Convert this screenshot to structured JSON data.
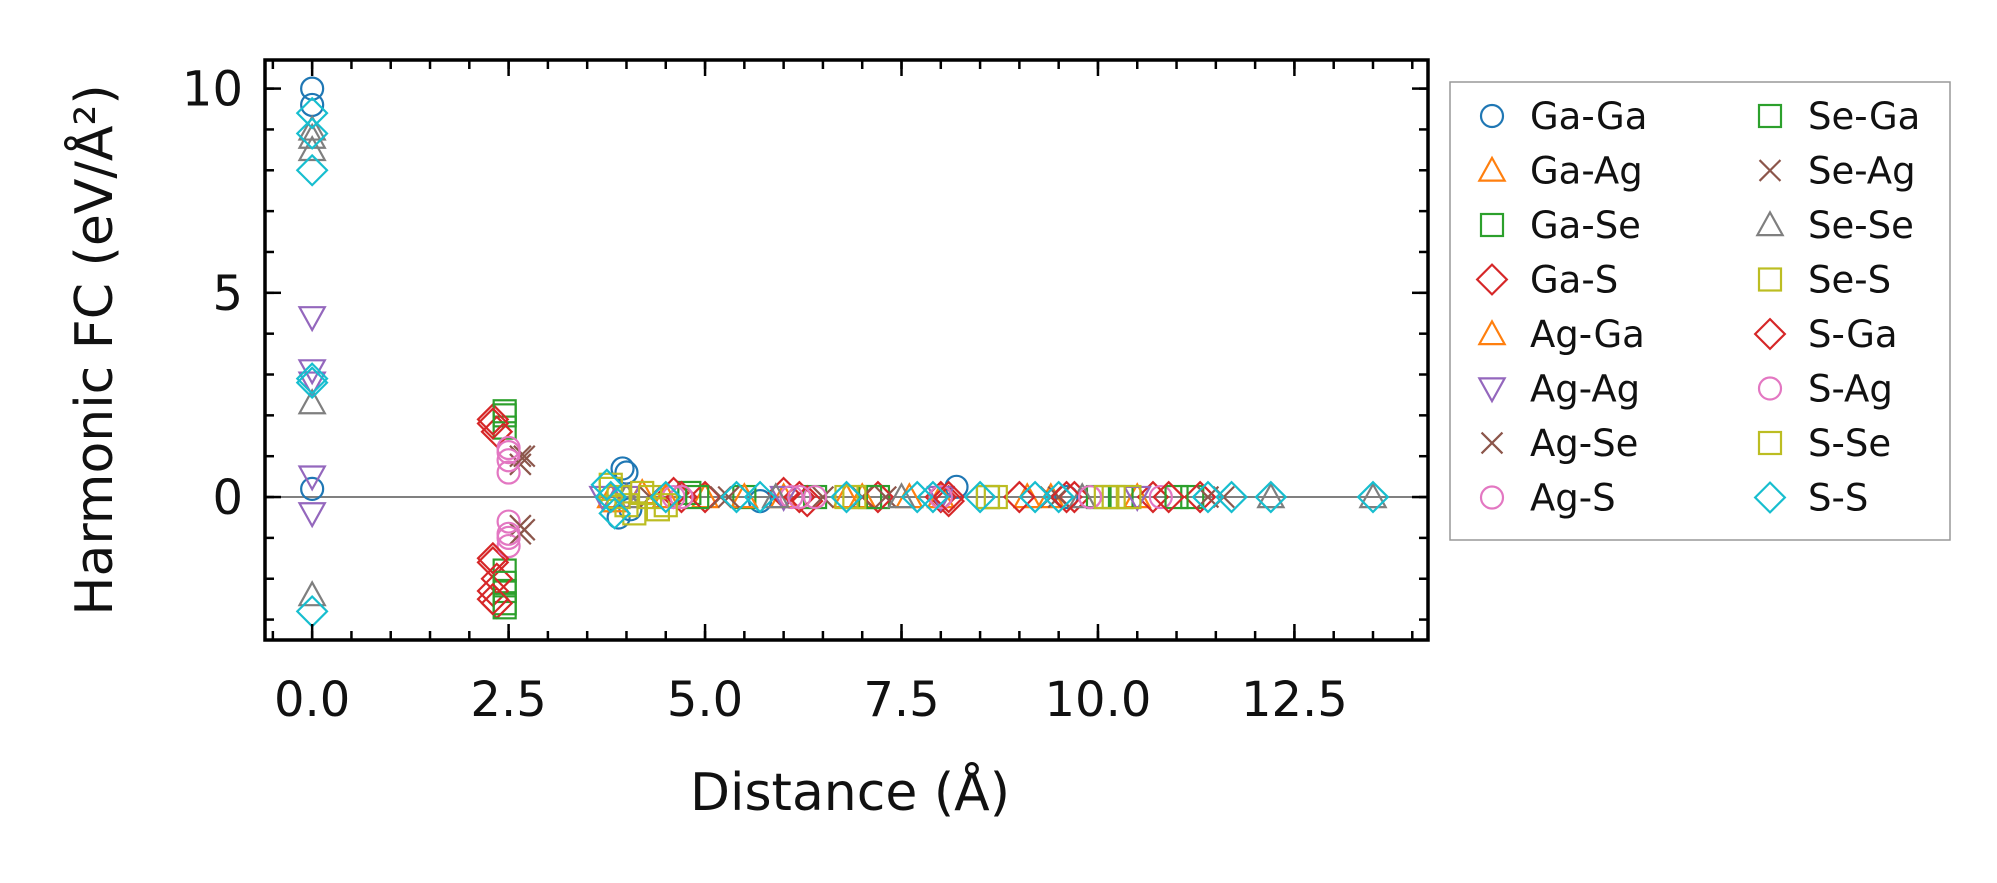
{
  "chart_data": {
    "type": "scatter",
    "xlabel": "Distance (Å)",
    "ylabel": "Harmonic FC (eV/Å²)",
    "xlim": [
      -0.6,
      14.2
    ],
    "ylim": [
      -3.5,
      10.7
    ],
    "x_ticks": [
      {
        "value": 0,
        "label": "0.0"
      },
      {
        "value": 2.5,
        "label": "2.5"
      },
      {
        "value": 5,
        "label": "5.0"
      },
      {
        "value": 7.5,
        "label": "7.5"
      },
      {
        "value": 10,
        "label": "10.0"
      },
      {
        "value": 12.5,
        "label": "12.5"
      }
    ],
    "y_ticks": [
      {
        "value": 0,
        "label": "0"
      },
      {
        "value": 5,
        "label": "5"
      },
      {
        "value": 10,
        "label": "10"
      }
    ],
    "x_minor_step": 0.5,
    "y_minor_step": 1,
    "zero_line": true,
    "legend_position": "outside-right",
    "series": [
      {
        "name": "Ga-Ga",
        "marker": "circle",
        "color": "#1f77b4",
        "points": [
          [
            0,
            10.0
          ],
          [
            0,
            9.6
          ],
          [
            0,
            0.2
          ],
          [
            3.95,
            0.7
          ],
          [
            4.0,
            0.6
          ],
          [
            3.9,
            -0.5
          ],
          [
            4.05,
            -0.3
          ],
          [
            5.7,
            -0.1
          ],
          [
            8.2,
            0.25
          ],
          [
            9.6,
            0.0
          ]
        ]
      },
      {
        "name": "Ga-Ag",
        "marker": "triangle-up",
        "color": "#ff7f0e",
        "points": [
          [
            3.8,
            0.0
          ],
          [
            4.2,
            0.1
          ],
          [
            5.0,
            0.0
          ],
          [
            6.0,
            0.0
          ],
          [
            7.0,
            0.0
          ],
          [
            8.0,
            0.0
          ],
          [
            9.1,
            0.0
          ],
          [
            10.5,
            0.0
          ]
        ]
      },
      {
        "name": "Ga-Se",
        "marker": "square",
        "color": "#2ca02c",
        "points": [
          [
            2.45,
            2.0
          ],
          [
            2.45,
            1.7
          ],
          [
            2.45,
            -1.8
          ],
          [
            2.45,
            -2.3
          ],
          [
            2.45,
            -2.6
          ],
          [
            4.8,
            0.1
          ],
          [
            5.5,
            0.0
          ],
          [
            6.4,
            0.0
          ],
          [
            7.2,
            0.0
          ],
          [
            8.6,
            0.0
          ],
          [
            10.3,
            0.0
          ],
          [
            11.2,
            0.0
          ]
        ]
      },
      {
        "name": "Ga-S",
        "marker": "diamond",
        "color": "#d62728",
        "points": [
          [
            2.3,
            1.9
          ],
          [
            2.35,
            1.6
          ],
          [
            2.3,
            -1.6
          ],
          [
            2.35,
            -2.0
          ],
          [
            2.3,
            -2.3
          ],
          [
            2.35,
            -2.6
          ],
          [
            4.6,
            0.1
          ],
          [
            5.0,
            0.0
          ],
          [
            6.0,
            0.1
          ],
          [
            6.3,
            -0.1
          ],
          [
            7.2,
            0.0
          ],
          [
            8.0,
            0.0
          ],
          [
            8.1,
            -0.1
          ],
          [
            9.0,
            0.0
          ],
          [
            9.7,
            0.0
          ],
          [
            10.7,
            0.0
          ],
          [
            11.3,
            0.0
          ]
        ]
      },
      {
        "name": "Ag-Ga",
        "marker": "triangle-up",
        "color": "#ff7f0e",
        "points": [
          [
            3.85,
            -0.1
          ],
          [
            4.5,
            0.0
          ],
          [
            5.5,
            0.0
          ],
          [
            6.8,
            0.0
          ],
          [
            7.6,
            0.0
          ],
          [
            9.4,
            0.0
          ]
        ]
      },
      {
        "name": "Ag-Ag",
        "marker": "triangle-down",
        "color": "#9467bd",
        "points": [
          [
            0,
            4.4
          ],
          [
            0,
            3.1
          ],
          [
            0,
            2.8
          ],
          [
            0,
            0.5
          ],
          [
            0,
            -0.4
          ],
          [
            3.7,
            0.0
          ],
          [
            4.0,
            0.0
          ],
          [
            6.0,
            0.0
          ],
          [
            8.0,
            0.0
          ],
          [
            10.5,
            0.0
          ]
        ]
      },
      {
        "name": "Ag-Se",
        "marker": "x",
        "color": "#8c564b",
        "points": [
          [
            2.65,
            1.0
          ],
          [
            2.65,
            0.8
          ],
          [
            2.65,
            -0.7
          ],
          [
            2.65,
            -0.9
          ],
          [
            4.3,
            0.0
          ],
          [
            5.2,
            0.0
          ],
          [
            6.5,
            0.0
          ],
          [
            7.0,
            0.0
          ],
          [
            9.5,
            0.0
          ],
          [
            11.4,
            0.0
          ]
        ]
      },
      {
        "name": "Ag-S",
        "marker": "circle",
        "color": "#e377c2",
        "points": [
          [
            2.5,
            1.2
          ],
          [
            2.5,
            0.9
          ],
          [
            2.5,
            0.6
          ],
          [
            2.5,
            -0.6
          ],
          [
            2.5,
            -0.9
          ],
          [
            2.5,
            -1.2
          ],
          [
            4.6,
            0.0
          ],
          [
            6.1,
            0.0
          ],
          [
            6.4,
            0.0
          ],
          [
            8.0,
            0.0
          ],
          [
            9.9,
            0.0
          ],
          [
            10.8,
            0.0
          ]
        ]
      },
      {
        "name": "Se-Ga",
        "marker": "square",
        "color": "#2ca02c",
        "points": [
          [
            2.45,
            2.1
          ],
          [
            2.45,
            -2.1
          ],
          [
            2.45,
            -2.7
          ],
          [
            4.9,
            0.0
          ],
          [
            7.1,
            0.0
          ],
          [
            10.0,
            0.0
          ],
          [
            11.0,
            0.0
          ]
        ]
      },
      {
        "name": "Se-Ag",
        "marker": "x",
        "color": "#8c564b",
        "points": [
          [
            2.7,
            1.0
          ],
          [
            2.7,
            -0.8
          ],
          [
            5.3,
            0.0
          ],
          [
            7.3,
            0.0
          ],
          [
            9.4,
            0.0
          ],
          [
            11.6,
            0.0
          ]
        ]
      },
      {
        "name": "Se-Se",
        "marker": "triangle-up",
        "color": "#7f7f7f",
        "points": [
          [
            0,
            9.0
          ],
          [
            0,
            8.8
          ],
          [
            0,
            8.5
          ],
          [
            0,
            2.3
          ],
          [
            0,
            -2.4
          ],
          [
            4.0,
            0.0
          ],
          [
            5.9,
            0.0
          ],
          [
            7.5,
            0.0
          ],
          [
            9.8,
            0.0
          ],
          [
            12.2,
            0.0
          ],
          [
            13.5,
            0.0
          ]
        ]
      },
      {
        "name": "Se-S",
        "marker": "square",
        "color": "#bcbd22",
        "points": [
          [
            3.8,
            0.3
          ],
          [
            3.9,
            0.0
          ],
          [
            4.0,
            -0.2
          ],
          [
            4.2,
            0.1
          ],
          [
            4.4,
            -0.3
          ],
          [
            4.1,
            -0.4
          ],
          [
            6.9,
            0.0
          ],
          [
            8.7,
            0.0
          ],
          [
            10.2,
            0.0
          ],
          [
            10.4,
            0.0
          ]
        ]
      },
      {
        "name": "S-Ga",
        "marker": "diamond",
        "color": "#d62728",
        "points": [
          [
            2.3,
            1.8
          ],
          [
            2.3,
            -1.5
          ],
          [
            2.3,
            -2.5
          ],
          [
            4.7,
            0.0
          ],
          [
            6.2,
            0.0
          ],
          [
            8.1,
            0.0
          ],
          [
            9.6,
            0.0
          ],
          [
            10.9,
            0.0
          ]
        ]
      },
      {
        "name": "S-Ag",
        "marker": "circle",
        "color": "#e377c2",
        "points": [
          [
            2.5,
            1.1
          ],
          [
            2.5,
            -1.0
          ],
          [
            4.7,
            0.0
          ],
          [
            6.2,
            0.0
          ],
          [
            9.9,
            0.0
          ]
        ]
      },
      {
        "name": "S-Se",
        "marker": "square",
        "color": "#bcbd22",
        "points": [
          [
            3.8,
            0.2
          ],
          [
            4.3,
            0.0
          ],
          [
            4.5,
            -0.2
          ],
          [
            6.8,
            0.0
          ],
          [
            8.6,
            0.0
          ],
          [
            10.1,
            0.0
          ]
        ]
      },
      {
        "name": "S-S",
        "marker": "diamond",
        "color": "#17becf",
        "points": [
          [
            0,
            9.4
          ],
          [
            0,
            8.9
          ],
          [
            0,
            8.0
          ],
          [
            0,
            2.9
          ],
          [
            0,
            2.8
          ],
          [
            0,
            -2.8
          ],
          [
            3.75,
            0.3
          ],
          [
            3.8,
            0.0
          ],
          [
            3.85,
            -0.4
          ],
          [
            4.5,
            0.0
          ],
          [
            5.4,
            0.0
          ],
          [
            5.7,
            0.0
          ],
          [
            6.8,
            0.0
          ],
          [
            7.7,
            0.0
          ],
          [
            7.9,
            0.0
          ],
          [
            8.5,
            0.0
          ],
          [
            9.2,
            0.0
          ],
          [
            9.5,
            0.0
          ],
          [
            11.4,
            0.0
          ],
          [
            11.7,
            0.0
          ],
          [
            12.2,
            0.0
          ],
          [
            13.5,
            0.0
          ]
        ]
      }
    ]
  }
}
